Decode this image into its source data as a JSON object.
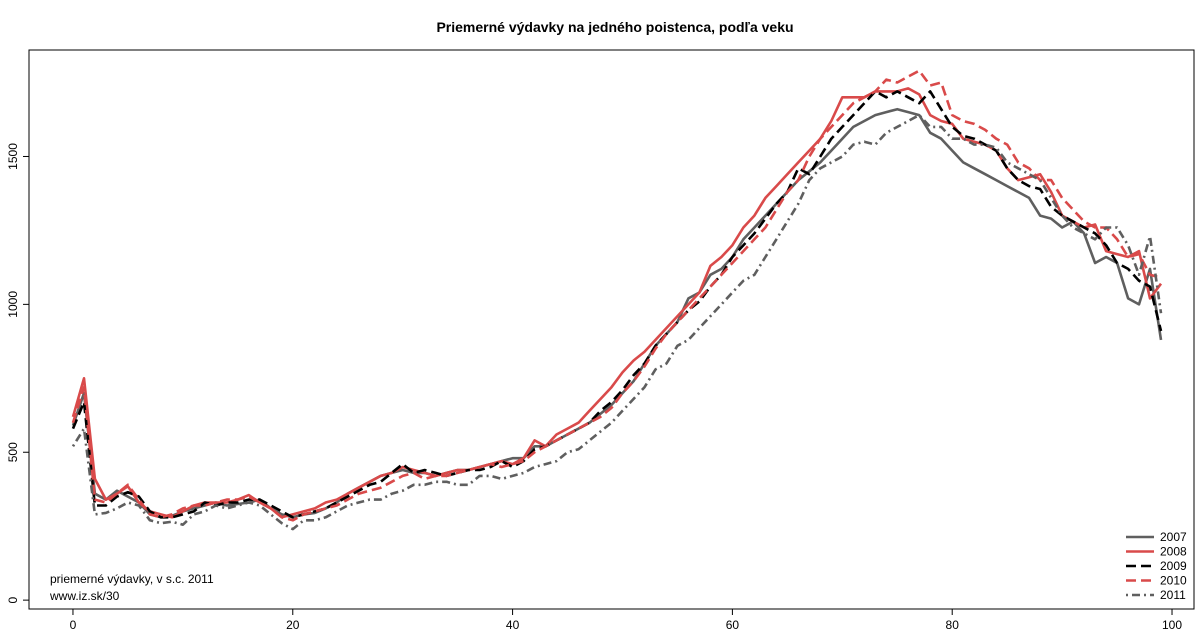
{
  "chart_data": {
    "type": "line",
    "title": "Priemerné výdavky na jedného poistenca, podľa veku",
    "xlabel": "",
    "ylabel": "",
    "xlim": [
      -4,
      102
    ],
    "ylim": [
      -30,
      1860
    ],
    "x_ticks": [
      0,
      20,
      40,
      60,
      80,
      100
    ],
    "y_ticks": [
      0,
      500,
      1000,
      1500
    ],
    "grid": false,
    "legend_position": "bottom-right",
    "annotations": [
      "priemerné výdavky, v s.c. 2011",
      "www.iz.sk/30"
    ],
    "series": [
      {
        "name": "2007",
        "color": "#5f5f5f",
        "style": "solid",
        "x": [
          0,
          1,
          2,
          3,
          4,
          5,
          6,
          7,
          8,
          9,
          10,
          11,
          12,
          13,
          14,
          15,
          16,
          17,
          18,
          19,
          20,
          21,
          22,
          23,
          24,
          25,
          26,
          27,
          28,
          29,
          30,
          31,
          32,
          33,
          34,
          35,
          36,
          37,
          38,
          39,
          40,
          41,
          42,
          43,
          44,
          45,
          46,
          47,
          48,
          49,
          50,
          51,
          52,
          53,
          54,
          55,
          56,
          57,
          58,
          59,
          60,
          61,
          62,
          63,
          64,
          65,
          66,
          67,
          68,
          69,
          70,
          71,
          72,
          73,
          74,
          75,
          76,
          77,
          78,
          79,
          80,
          81,
          82,
          83,
          84,
          85,
          86,
          87,
          88,
          89,
          90,
          91,
          92,
          93,
          94,
          95,
          96,
          97,
          98,
          99
        ],
        "y": [
          590,
          700,
          360,
          340,
          370,
          350,
          330,
          290,
          280,
          285,
          300,
          310,
          320,
          330,
          320,
          325,
          330,
          340,
          310,
          290,
          280,
          290,
          295,
          310,
          330,
          360,
          380,
          400,
          420,
          430,
          440,
          430,
          430,
          420,
          430,
          440,
          440,
          450,
          460,
          470,
          480,
          480,
          520,
          520,
          540,
          560,
          580,
          600,
          630,
          660,
          700,
          740,
          800,
          860,
          900,
          940,
          1020,
          1040,
          1100,
          1120,
          1160,
          1220,
          1260,
          1300,
          1340,
          1380,
          1420,
          1450,
          1480,
          1520,
          1560,
          1600,
          1620,
          1640,
          1650,
          1660,
          1650,
          1640,
          1580,
          1560,
          1520,
          1480,
          1460,
          1440,
          1420,
          1400,
          1380,
          1360,
          1300,
          1290,
          1260,
          1280,
          1240,
          1140,
          1160,
          1140,
          1020,
          1000,
          1120,
          880
        ]
      },
      {
        "name": "2008",
        "color": "#d94a4a",
        "style": "solid",
        "x": [
          0,
          1,
          2,
          3,
          4,
          5,
          6,
          7,
          8,
          9,
          10,
          11,
          12,
          13,
          14,
          15,
          16,
          17,
          18,
          19,
          20,
          21,
          22,
          23,
          24,
          25,
          26,
          27,
          28,
          29,
          30,
          31,
          32,
          33,
          34,
          35,
          36,
          37,
          38,
          39,
          40,
          41,
          42,
          43,
          44,
          45,
          46,
          47,
          48,
          49,
          50,
          51,
          52,
          53,
          54,
          55,
          56,
          57,
          58,
          59,
          60,
          61,
          62,
          63,
          64,
          65,
          66,
          67,
          68,
          69,
          70,
          71,
          72,
          73,
          74,
          75,
          76,
          77,
          78,
          79,
          80,
          81,
          82,
          83,
          84,
          85,
          86,
          87,
          88,
          89,
          90,
          91,
          92,
          93,
          94,
          95,
          96,
          97,
          98,
          99
        ],
        "y": [
          620,
          750,
          410,
          340,
          360,
          385,
          330,
          300,
          290,
          280,
          300,
          320,
          330,
          330,
          330,
          340,
          355,
          330,
          310,
          280,
          290,
          300,
          310,
          330,
          340,
          360,
          380,
          400,
          420,
          430,
          450,
          440,
          430,
          420,
          430,
          440,
          440,
          450,
          460,
          470,
          460,
          480,
          540,
          520,
          560,
          580,
          600,
          640,
          680,
          720,
          770,
          810,
          840,
          880,
          920,
          960,
          1000,
          1040,
          1130,
          1160,
          1200,
          1260,
          1300,
          1360,
          1400,
          1440,
          1480,
          1520,
          1560,
          1620,
          1700,
          1700,
          1700,
          1720,
          1720,
          1720,
          1730,
          1710,
          1640,
          1620,
          1610,
          1560,
          1550,
          1540,
          1520,
          1460,
          1420,
          1430,
          1440,
          1380,
          1300,
          1280,
          1260,
          1270,
          1180,
          1170,
          1160,
          1180,
          1020,
          1070
        ]
      },
      {
        "name": "2009",
        "color": "#000000",
        "style": "dashed",
        "x": [
          0,
          1,
          2,
          3,
          4,
          5,
          6,
          7,
          8,
          9,
          10,
          11,
          12,
          13,
          14,
          15,
          16,
          17,
          18,
          19,
          20,
          21,
          22,
          23,
          24,
          25,
          26,
          27,
          28,
          29,
          30,
          31,
          32,
          33,
          34,
          35,
          36,
          37,
          38,
          39,
          40,
          41,
          42,
          43,
          44,
          45,
          46,
          47,
          48,
          49,
          50,
          51,
          52,
          53,
          54,
          55,
          56,
          57,
          58,
          59,
          60,
          61,
          62,
          63,
          64,
          65,
          66,
          67,
          68,
          69,
          70,
          71,
          72,
          73,
          74,
          75,
          76,
          77,
          78,
          79,
          80,
          81,
          82,
          83,
          84,
          85,
          86,
          87,
          88,
          89,
          90,
          91,
          92,
          93,
          94,
          95,
          96,
          97,
          98,
          99
        ],
        "y": [
          580,
          670,
          320,
          320,
          350,
          365,
          350,
          300,
          280,
          280,
          290,
          300,
          330,
          320,
          330,
          330,
          340,
          340,
          320,
          300,
          280,
          290,
          300,
          310,
          330,
          350,
          370,
          390,
          400,
          430,
          460,
          430,
          440,
          430,
          420,
          430,
          440,
          440,
          450,
          470,
          450,
          470,
          510,
          520,
          540,
          560,
          580,
          600,
          640,
          670,
          710,
          760,
          800,
          860,
          900,
          940,
          980,
          1010,
          1060,
          1100,
          1160,
          1200,
          1240,
          1290,
          1340,
          1380,
          1460,
          1440,
          1500,
          1560,
          1600,
          1640,
          1680,
          1720,
          1700,
          1720,
          1700,
          1680,
          1720,
          1660,
          1600,
          1570,
          1560,
          1540,
          1520,
          1460,
          1420,
          1400,
          1390,
          1330,
          1300,
          1280,
          1260,
          1240,
          1200,
          1140,
          1120,
          1080,
          1060,
          910
        ]
      },
      {
        "name": "2010",
        "color": "#d94a4a",
        "style": "dashed",
        "x": [
          0,
          1,
          2,
          3,
          4,
          5,
          6,
          7,
          8,
          9,
          10,
          11,
          12,
          13,
          14,
          15,
          16,
          17,
          18,
          19,
          20,
          21,
          22,
          23,
          24,
          25,
          26,
          27,
          28,
          29,
          30,
          31,
          32,
          33,
          34,
          35,
          36,
          37,
          38,
          39,
          40,
          41,
          42,
          43,
          44,
          45,
          46,
          47,
          48,
          49,
          50,
          51,
          52,
          53,
          54,
          55,
          56,
          57,
          58,
          59,
          60,
          61,
          62,
          63,
          64,
          65,
          66,
          67,
          68,
          69,
          70,
          71,
          72,
          73,
          74,
          75,
          76,
          77,
          78,
          79,
          80,
          81,
          82,
          83,
          84,
          85,
          86,
          87,
          88,
          89,
          90,
          91,
          92,
          93,
          94,
          95,
          96,
          97,
          98,
          99
        ],
        "y": [
          600,
          720,
          340,
          330,
          360,
          390,
          340,
          290,
          280,
          290,
          310,
          320,
          320,
          330,
          340,
          340,
          350,
          330,
          310,
          280,
          270,
          290,
          300,
          310,
          320,
          340,
          360,
          370,
          380,
          400,
          420,
          430,
          410,
          420,
          420,
          430,
          440,
          450,
          460,
          450,
          460,
          470,
          500,
          520,
          540,
          560,
          580,
          600,
          620,
          650,
          700,
          740,
          790,
          850,
          900,
          940,
          980,
          1020,
          1060,
          1100,
          1140,
          1180,
          1220,
          1260,
          1320,
          1380,
          1420,
          1500,
          1560,
          1600,
          1640,
          1680,
          1700,
          1720,
          1760,
          1750,
          1770,
          1790,
          1740,
          1750,
          1640,
          1620,
          1610,
          1590,
          1560,
          1540,
          1480,
          1460,
          1420,
          1420,
          1360,
          1320,
          1280,
          1260,
          1260,
          1220,
          1160,
          1170,
          1100,
          1090
        ]
      },
      {
        "name": "2011",
        "color": "#5f5f5f",
        "style": "dotdash",
        "x": [
          0,
          1,
          2,
          3,
          4,
          5,
          6,
          7,
          8,
          9,
          10,
          11,
          12,
          13,
          14,
          15,
          16,
          17,
          18,
          19,
          20,
          21,
          22,
          23,
          24,
          25,
          26,
          27,
          28,
          29,
          30,
          31,
          32,
          33,
          34,
          35,
          36,
          37,
          38,
          39,
          40,
          41,
          42,
          43,
          44,
          45,
          46,
          47,
          48,
          49,
          50,
          51,
          52,
          53,
          54,
          55,
          56,
          57,
          58,
          59,
          60,
          61,
          62,
          63,
          64,
          65,
          66,
          67,
          68,
          69,
          70,
          71,
          72,
          73,
          74,
          75,
          76,
          77,
          78,
          79,
          80,
          81,
          82,
          83,
          84,
          85,
          86,
          87,
          88,
          89,
          90,
          91,
          92,
          93,
          94,
          95,
          96,
          97,
          98,
          99
        ],
        "y": [
          520,
          580,
          290,
          295,
          310,
          330,
          320,
          270,
          260,
          265,
          255,
          290,
          300,
          320,
          310,
          320,
          330,
          320,
          290,
          260,
          240,
          270,
          270,
          280,
          300,
          320,
          330,
          340,
          340,
          360,
          370,
          390,
          390,
          400,
          400,
          390,
          390,
          420,
          420,
          410,
          420,
          430,
          450,
          460,
          470,
          500,
          510,
          540,
          570,
          600,
          640,
          680,
          720,
          780,
          800,
          860,
          880,
          920,
          960,
          1000,
          1040,
          1080,
          1100,
          1160,
          1220,
          1280,
          1340,
          1420,
          1460,
          1480,
          1500,
          1540,
          1550,
          1540,
          1580,
          1600,
          1620,
          1640,
          1600,
          1600,
          1560,
          1560,
          1540,
          1540,
          1530,
          1480,
          1460,
          1440,
          1420,
          1360,
          1300,
          1260,
          1240,
          1220,
          1260,
          1260,
          1200,
          1100,
          1230,
          970
        ]
      }
    ]
  }
}
